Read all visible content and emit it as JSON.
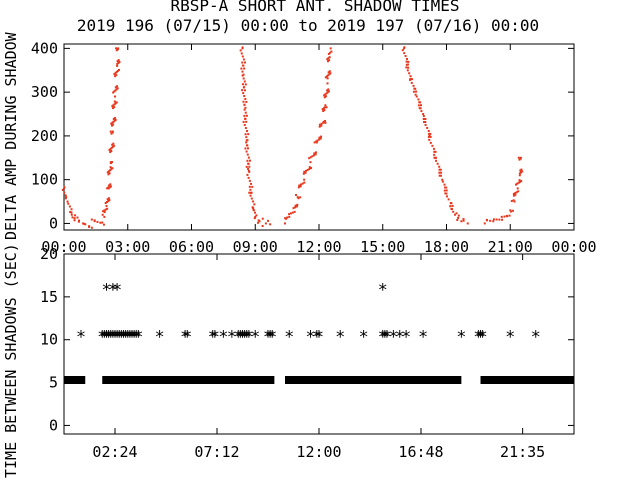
{
  "title_line1": "RBSP-A SHORT ANT. SHADOW TIMES",
  "title_line2": "2019 196 (07/15) 00:00 to 2019 197 (07/16) 00:00",
  "chart_data": [
    {
      "type": "scatter",
      "ylabel": "DELTA AMP DURING SHADOW",
      "xlim_hours": [
        0,
        24
      ],
      "ylim": [
        -15,
        410
      ],
      "xtick_labels": [
        "00:00",
        "03:00",
        "06:00",
        "09:00",
        "12:00",
        "15:00",
        "18:00",
        "21:00",
        "00:00"
      ],
      "xtick_hours": [
        0,
        3,
        6,
        9,
        12,
        15,
        18,
        21,
        24
      ],
      "ytick_labels": [
        "0",
        "100",
        "200",
        "300",
        "400"
      ],
      "ytick_values": [
        0,
        100,
        200,
        300,
        400
      ],
      "marker_color": "#e8371d",
      "series": [
        {
          "values": [
            [
              0.0,
              80
            ],
            [
              0.1,
              60
            ],
            [
              0.2,
              45
            ],
            [
              0.35,
              25
            ],
            [
              0.5,
              12
            ],
            [
              0.7,
              4
            ],
            [
              0.9,
              0
            ],
            [
              1.0,
              -2
            ],
            [
              1.8,
              2
            ],
            [
              1.9,
              15
            ],
            [
              2.0,
              40
            ],
            [
              2.1,
              80
            ],
            [
              2.2,
              140
            ],
            [
              2.3,
              210
            ],
            [
              2.4,
              290
            ],
            [
              2.5,
              360
            ],
            [
              2.55,
              400
            ]
          ]
        },
        {
          "values": [
            [
              8.4,
              400
            ],
            [
              8.45,
              340
            ],
            [
              8.5,
              260
            ],
            [
              8.6,
              190
            ],
            [
              8.7,
              120
            ],
            [
              8.8,
              70
            ],
            [
              8.9,
              35
            ],
            [
              9.0,
              15
            ],
            [
              9.2,
              5
            ],
            [
              9.5,
              0
            ],
            [
              9.7,
              -2
            ]
          ]
        },
        {
          "values": [
            [
              10.4,
              0
            ],
            [
              10.6,
              15
            ],
            [
              10.8,
              35
            ],
            [
              11.0,
              60
            ],
            [
              11.3,
              100
            ],
            [
              11.6,
              140
            ],
            [
              11.9,
              185
            ],
            [
              12.2,
              230
            ],
            [
              12.3,
              270
            ],
            [
              12.4,
              320
            ],
            [
              12.5,
              380
            ],
            [
              12.55,
              400
            ]
          ]
        },
        {
          "values": [
            [
              16.0,
              400
            ],
            [
              16.3,
              330
            ],
            [
              16.6,
              290
            ],
            [
              16.9,
              250
            ],
            [
              17.2,
              200
            ],
            [
              17.5,
              150
            ],
            [
              17.8,
              100
            ],
            [
              18.1,
              55
            ],
            [
              18.4,
              20
            ],
            [
              18.7,
              5
            ],
            [
              19.0,
              0
            ]
          ]
        },
        {
          "values": [
            [
              19.8,
              0
            ],
            [
              20.2,
              5
            ],
            [
              20.6,
              15
            ],
            [
              21.0,
              30
            ],
            [
              21.2,
              50
            ],
            [
              21.35,
              80
            ],
            [
              21.45,
              110
            ],
            [
              21.5,
              150
            ]
          ]
        }
      ]
    },
    {
      "type": "scatter",
      "ylabel": "TIME BETWEEN SHADOWS (SEC)",
      "xlim_hours": [
        0,
        24
      ],
      "ylim": [
        -1,
        20
      ],
      "xtick_labels": [
        "02:24",
        "07:12",
        "12:00",
        "16:48",
        "21:35"
      ],
      "xtick_hours": [
        2.4,
        7.2,
        12.0,
        16.8,
        21.583
      ],
      "ytick_labels": [
        "0",
        "5",
        "10",
        "15",
        "20"
      ],
      "ytick_values": [
        0,
        5,
        10,
        15,
        20
      ],
      "marker": "*",
      "marker_color": "#000000",
      "band_value": 5.3,
      "band_ranges_hours": [
        [
          0.0,
          1.0
        ],
        [
          1.8,
          9.9
        ],
        [
          10.4,
          18.7
        ],
        [
          19.6,
          24.0
        ]
      ],
      "points_16": [
        2.0,
        2.3,
        2.5,
        15.0
      ],
      "points_10_5": [
        0.8,
        1.8,
        1.9,
        2.0,
        2.1,
        2.2,
        2.3,
        2.4,
        2.5,
        2.6,
        2.7,
        2.8,
        2.9,
        3.0,
        3.1,
        3.2,
        3.3,
        3.4,
        3.5,
        4.5,
        5.7,
        5.8,
        7.0,
        7.1,
        7.5,
        7.9,
        8.2,
        8.3,
        8.4,
        8.5,
        8.6,
        8.7,
        9.0,
        9.6,
        9.7,
        9.8,
        10.6,
        11.6,
        11.9,
        12.0,
        13.0,
        14.1,
        15.0,
        15.1,
        15.2,
        15.5,
        15.8,
        16.1,
        16.9,
        18.7,
        19.5,
        19.6,
        19.7,
        21.0,
        22.2
      ]
    }
  ]
}
